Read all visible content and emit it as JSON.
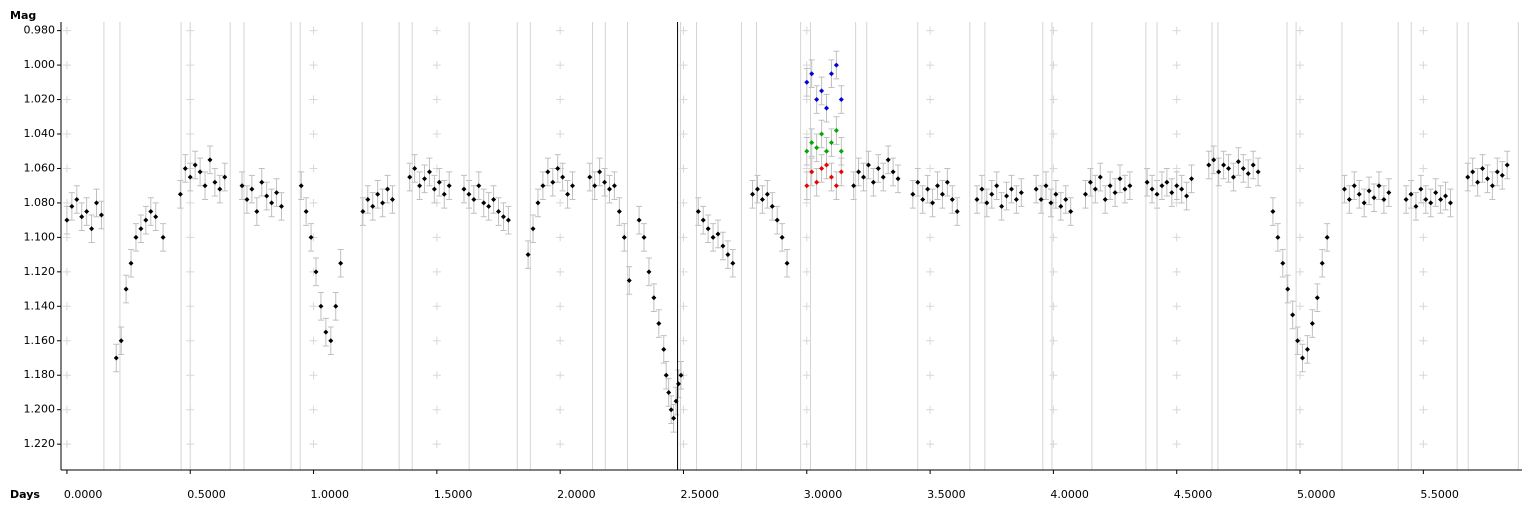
{
  "chart_data": {
    "type": "scatter",
    "y_label": "Mag",
    "x_label": "Days",
    "xlim": [
      -0.024,
      5.9
    ],
    "ylim": [
      1.235,
      0.975
    ],
    "xticks": [
      {
        "value": 0,
        "label": "0.0000"
      },
      {
        "value": 0.5,
        "label": "0.5000"
      },
      {
        "value": 1,
        "label": "1.0000"
      },
      {
        "value": 1.5,
        "label": "1.5000"
      },
      {
        "value": 2,
        "label": "2.0000"
      },
      {
        "value": 2.5,
        "label": "2.5000"
      },
      {
        "value": 3,
        "label": "3.0000"
      },
      {
        "value": 3.5,
        "label": "3.5000"
      },
      {
        "value": 4,
        "label": "4.0000"
      },
      {
        "value": 4.5,
        "label": "4.5000"
      },
      {
        "value": 5,
        "label": "5.0000"
      },
      {
        "value": 5.5,
        "label": "5.5000"
      }
    ],
    "yticks": [
      {
        "value": 0.98,
        "label": "0.980"
      },
      {
        "value": 1,
        "label": "1.000"
      },
      {
        "value": 1.02,
        "label": "1.020"
      },
      {
        "value": 1.04,
        "label": "1.040"
      },
      {
        "value": 1.06,
        "label": "1.060"
      },
      {
        "value": 1.08,
        "label": "1.080"
      },
      {
        "value": 1.1,
        "label": "1.100"
      },
      {
        "value": 1.12,
        "label": "1.120"
      },
      {
        "value": 1.14,
        "label": "1.140"
      },
      {
        "value": 1.16,
        "label": "1.160"
      },
      {
        "value": 1.18,
        "label": "1.180"
      },
      {
        "value": 1.2,
        "label": "1.200"
      },
      {
        "value": 1.22,
        "label": "1.220"
      }
    ],
    "grid": true,
    "yerr": 0.008,
    "vlines": [
      0.15,
      0.215,
      0.463,
      0.5,
      0.662,
      0.718,
      0.909,
      0.946,
      1.197,
      1.347,
      1.4,
      1.631,
      1.826,
      1.879,
      2.131,
      2.183,
      2.273,
      2.488,
      2.553,
      2.735,
      2.796,
      2.975,
      3.015,
      3.198,
      3.243,
      3.45,
      3.661,
      3.722,
      3.957,
      3.994,
      4.156,
      4.375,
      4.42,
      4.643,
      4.667,
      4.947,
      4.984,
      5.17,
      5.398,
      5.451,
      5.637,
      5.682,
      5.885
    ],
    "cursor_x": 2.476,
    "series": [
      {
        "color": "#000000",
        "x": [
          0.0,
          0.02,
          0.04,
          0.06,
          0.08,
          0.1,
          0.12,
          0.14,
          0.2,
          0.22,
          0.24,
          0.26,
          0.28,
          0.3,
          0.32,
          0.34,
          0.36,
          0.39,
          0.46,
          0.48,
          0.5,
          0.52,
          0.54,
          0.56,
          0.58,
          0.6,
          0.62,
          0.64,
          0.71,
          0.73,
          0.75,
          0.77,
          0.79,
          0.81,
          0.83,
          0.85,
          0.87,
          0.95,
          0.97,
          0.99,
          1.01,
          1.03,
          1.05,
          1.07,
          1.09,
          1.11,
          1.2,
          1.22,
          1.24,
          1.26,
          1.28,
          1.3,
          1.32,
          1.39,
          1.41,
          1.43,
          1.45,
          1.47,
          1.49,
          1.51,
          1.53,
          1.55,
          1.61,
          1.63,
          1.65,
          1.67,
          1.69,
          1.71,
          1.73,
          1.75,
          1.77,
          1.79,
          1.87,
          1.89,
          1.91,
          1.93,
          1.95,
          1.97,
          1.99,
          2.01,
          2.03,
          2.05,
          2.12,
          2.14,
          2.16,
          2.18,
          2.2,
          2.22,
          2.24,
          2.26,
          2.28,
          2.32,
          2.34,
          2.36,
          2.38,
          2.4,
          2.42,
          2.43,
          2.44,
          2.45,
          2.46,
          2.47,
          2.48,
          2.49,
          2.56,
          2.58,
          2.6,
          2.62,
          2.64,
          2.66,
          2.68,
          2.7,
          2.78,
          2.8,
          2.82,
          2.84,
          2.86,
          2.88,
          2.9,
          2.92,
          3.19,
          3.21,
          3.23,
          3.25,
          3.27,
          3.29,
          3.31,
          3.33,
          3.35,
          3.37,
          3.43,
          3.45,
          3.47,
          3.49,
          3.51,
          3.53,
          3.55,
          3.57,
          3.59,
          3.61,
          3.69,
          3.71,
          3.73,
          3.75,
          3.77,
          3.79,
          3.81,
          3.83,
          3.85,
          3.87,
          3.93,
          3.95,
          3.97,
          3.99,
          4.01,
          4.03,
          4.05,
          4.07,
          4.13,
          4.15,
          4.17,
          4.19,
          4.21,
          4.23,
          4.25,
          4.27,
          4.29,
          4.31,
          4.38,
          4.4,
          4.42,
          4.44,
          4.46,
          4.48,
          4.5,
          4.52,
          4.54,
          4.56,
          4.63,
          4.65,
          4.67,
          4.69,
          4.71,
          4.73,
          4.75,
          4.77,
          4.79,
          4.81,
          4.83,
          4.89,
          4.91,
          4.93,
          4.95,
          4.97,
          4.99,
          5.01,
          5.03,
          5.05,
          5.07,
          5.09,
          5.11,
          5.18,
          5.2,
          5.22,
          5.24,
          5.26,
          5.28,
          5.3,
          5.32,
          5.34,
          5.36,
          5.43,
          5.45,
          5.47,
          5.49,
          5.51,
          5.53,
          5.55,
          5.57,
          5.59,
          5.61,
          5.68,
          5.7,
          5.72,
          5.74,
          5.76,
          5.78,
          5.8,
          5.82,
          5.84
        ],
        "values": [
          1.09,
          1.082,
          1.078,
          1.088,
          1.085,
          1.095,
          1.08,
          1.087,
          1.17,
          1.16,
          1.13,
          1.115,
          1.1,
          1.095,
          1.09,
          1.085,
          1.088,
          1.1,
          1.075,
          1.06,
          1.065,
          1.058,
          1.062,
          1.07,
          1.055,
          1.068,
          1.072,
          1.065,
          1.07,
          1.078,
          1.072,
          1.085,
          1.068,
          1.076,
          1.08,
          1.074,
          1.082,
          1.07,
          1.085,
          1.1,
          1.12,
          1.14,
          1.155,
          1.16,
          1.14,
          1.115,
          1.085,
          1.078,
          1.082,
          1.075,
          1.08,
          1.072,
          1.078,
          1.065,
          1.06,
          1.07,
          1.066,
          1.062,
          1.072,
          1.068,
          1.075,
          1.07,
          1.072,
          1.075,
          1.078,
          1.07,
          1.08,
          1.082,
          1.078,
          1.085,
          1.088,
          1.09,
          1.11,
          1.095,
          1.08,
          1.07,
          1.062,
          1.068,
          1.06,
          1.065,
          1.075,
          1.07,
          1.065,
          1.07,
          1.062,
          1.068,
          1.072,
          1.07,
          1.085,
          1.1,
          1.125,
          1.09,
          1.1,
          1.12,
          1.135,
          1.15,
          1.165,
          1.18,
          1.19,
          1.2,
          1.205,
          1.195,
          1.185,
          1.18,
          1.085,
          1.09,
          1.095,
          1.1,
          1.098,
          1.105,
          1.11,
          1.115,
          1.075,
          1.072,
          1.078,
          1.075,
          1.082,
          1.09,
          1.1,
          1.115,
          1.07,
          1.062,
          1.065,
          1.058,
          1.068,
          1.06,
          1.065,
          1.055,
          1.062,
          1.066,
          1.075,
          1.068,
          1.078,
          1.072,
          1.08,
          1.07,
          1.075,
          1.068,
          1.078,
          1.085,
          1.078,
          1.072,
          1.08,
          1.075,
          1.07,
          1.082,
          1.076,
          1.072,
          1.078,
          1.074,
          1.072,
          1.078,
          1.07,
          1.08,
          1.075,
          1.082,
          1.078,
          1.085,
          1.075,
          1.068,
          1.072,
          1.065,
          1.078,
          1.07,
          1.074,
          1.066,
          1.072,
          1.07,
          1.068,
          1.072,
          1.075,
          1.07,
          1.068,
          1.074,
          1.07,
          1.072,
          1.076,
          1.066,
          1.058,
          1.055,
          1.062,
          1.058,
          1.06,
          1.065,
          1.056,
          1.06,
          1.063,
          1.058,
          1.062,
          1.085,
          1.1,
          1.115,
          1.13,
          1.145,
          1.16,
          1.17,
          1.165,
          1.15,
          1.135,
          1.115,
          1.1,
          1.072,
          1.078,
          1.07,
          1.075,
          1.08,
          1.073,
          1.077,
          1.07,
          1.078,
          1.074,
          1.078,
          1.075,
          1.082,
          1.072,
          1.078,
          1.08,
          1.074,
          1.078,
          1.076,
          1.08,
          1.065,
          1.062,
          1.068,
          1.06,
          1.066,
          1.07,
          1.062,
          1.064,
          1.058
        ]
      },
      {
        "color": "#0000dd",
        "x": [
          3.0,
          3.02,
          3.04,
          3.06,
          3.08,
          3.1,
          3.12,
          3.14
        ],
        "values": [
          1.01,
          1.005,
          1.02,
          1.015,
          1.025,
          1.005,
          1.0,
          1.02
        ]
      },
      {
        "color": "#00aa00",
        "x": [
          3.0,
          3.02,
          3.04,
          3.06,
          3.08,
          3.1,
          3.12,
          3.14
        ],
        "values": [
          1.05,
          1.045,
          1.048,
          1.04,
          1.05,
          1.045,
          1.038,
          1.05
        ]
      },
      {
        "color": "#ee0000",
        "x": [
          3.0,
          3.02,
          3.04,
          3.06,
          3.08,
          3.1,
          3.12,
          3.14
        ],
        "values": [
          1.07,
          1.062,
          1.068,
          1.06,
          1.058,
          1.065,
          1.07,
          1.062
        ]
      }
    ]
  }
}
